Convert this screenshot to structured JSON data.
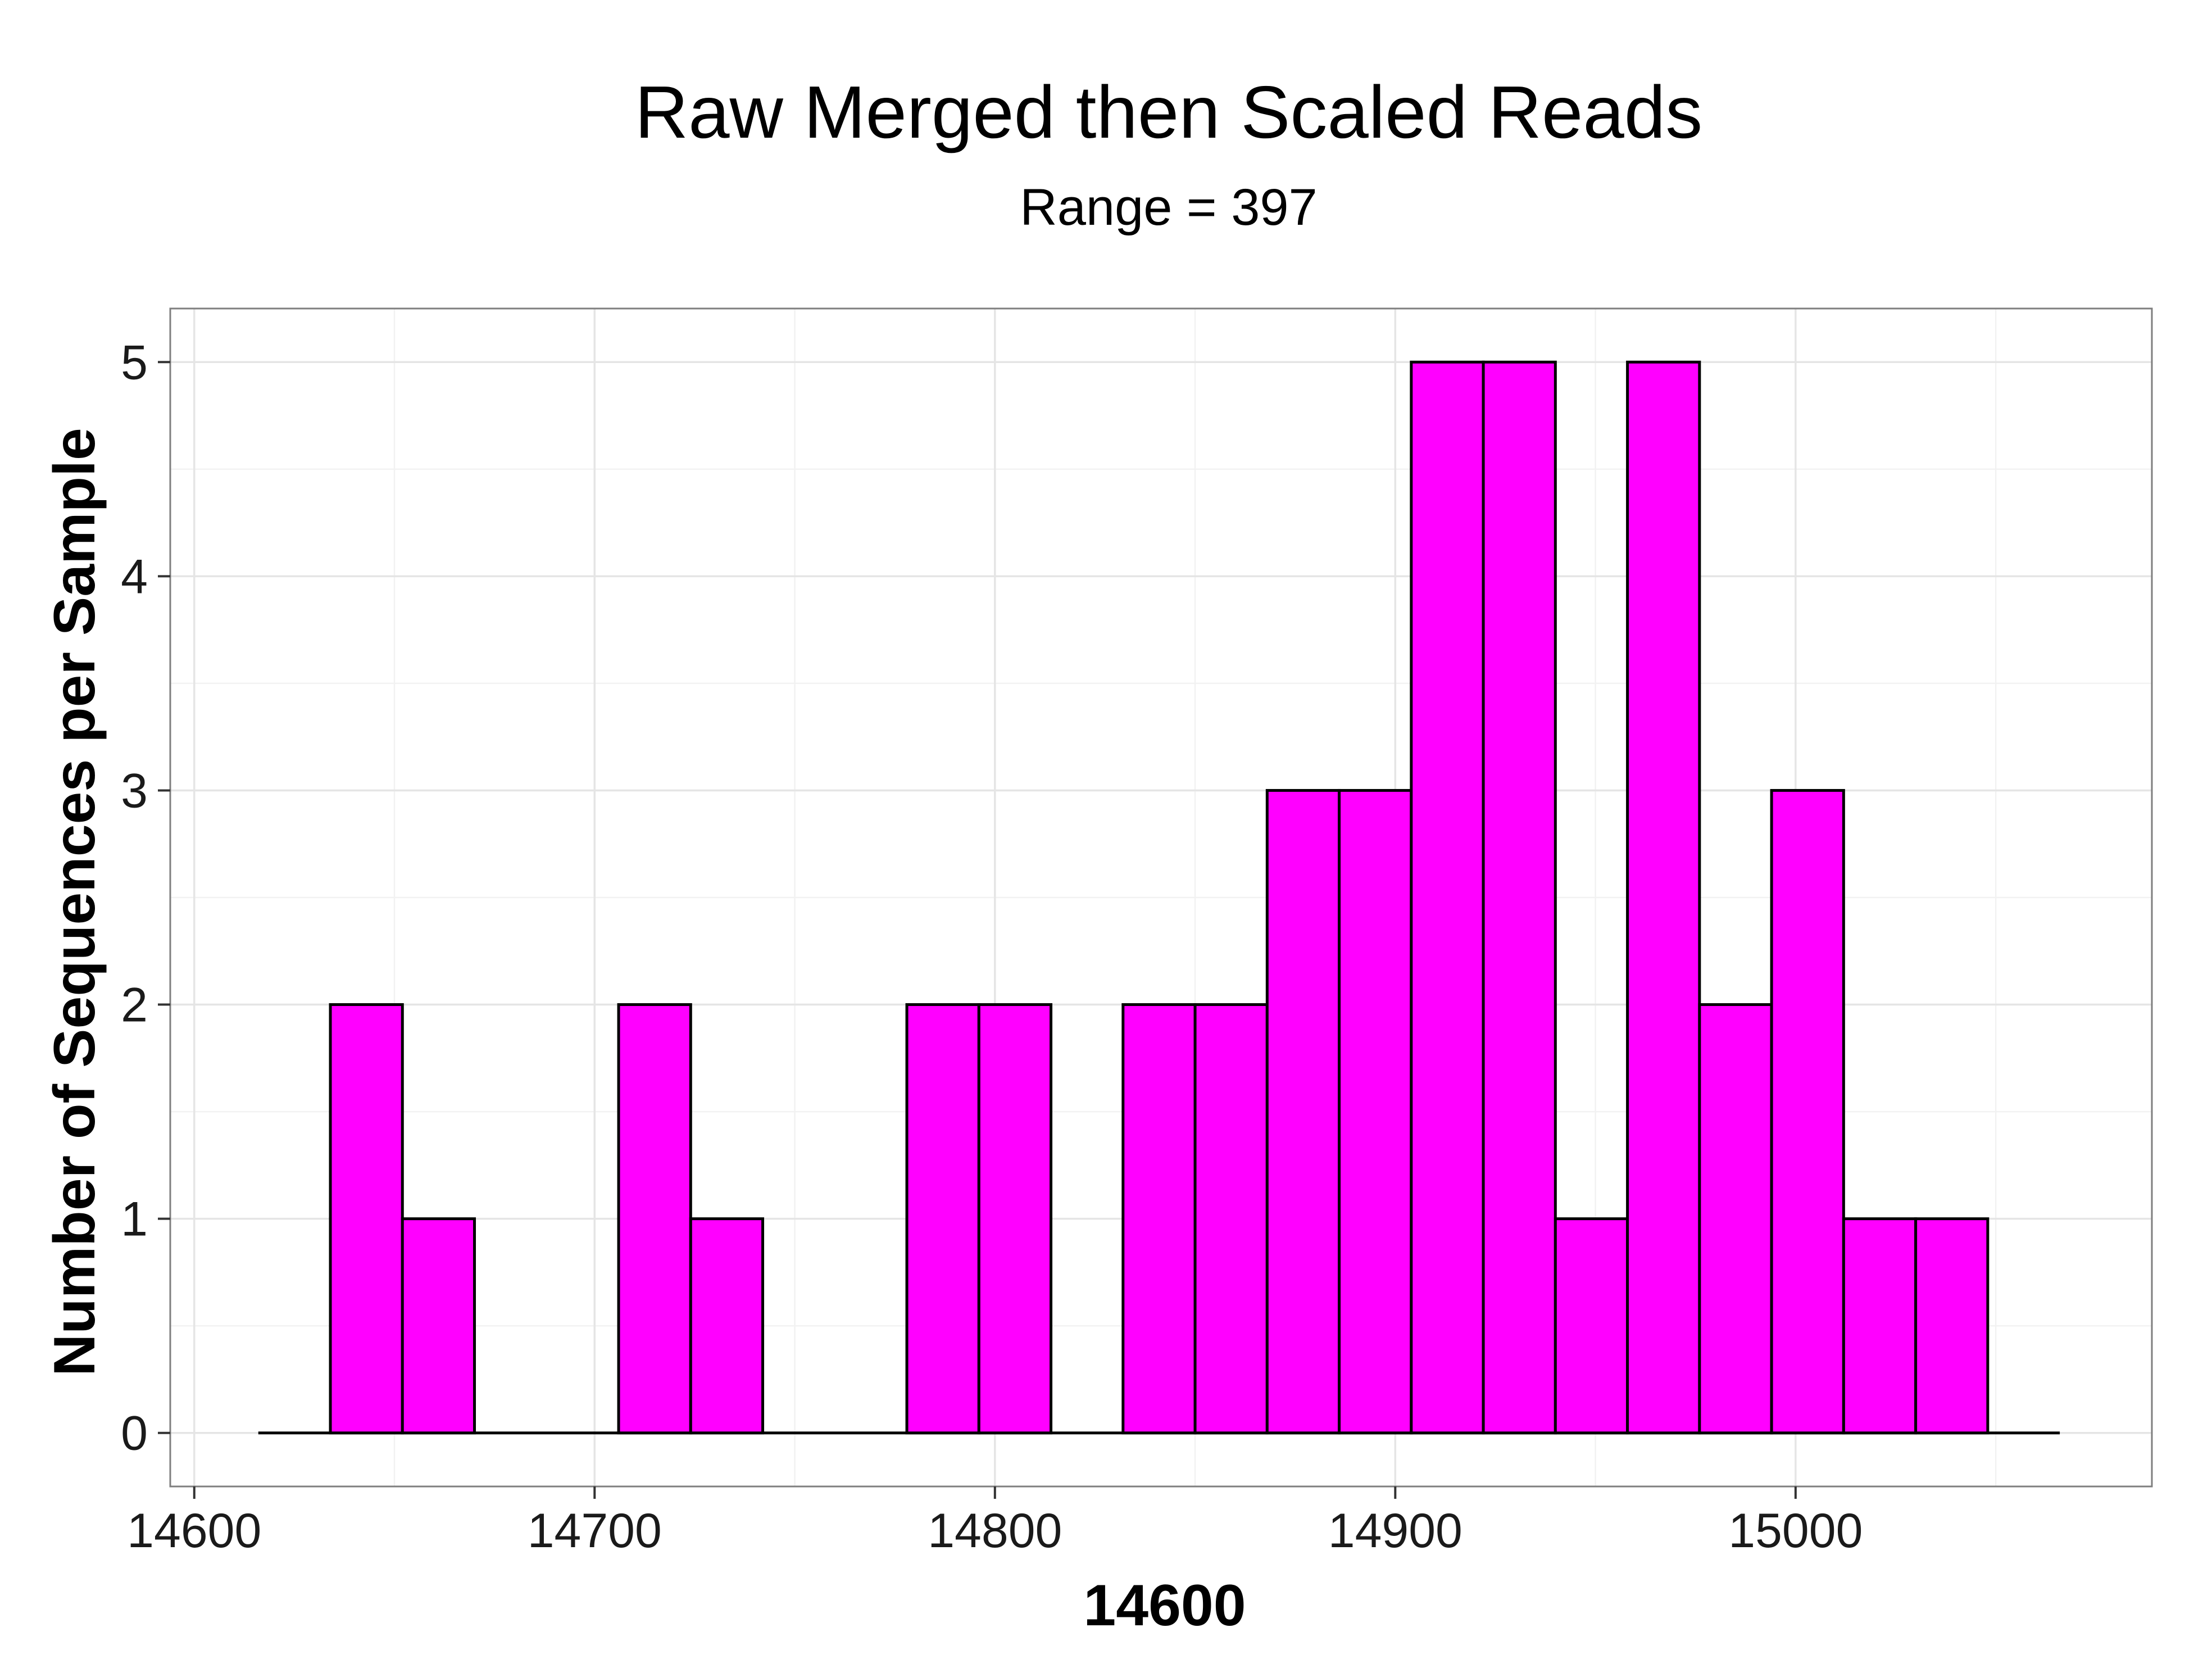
{
  "colors": {
    "bar_fill": "#ff00ff",
    "bar_stroke": "#000000",
    "panel_border": "#7f7f7f",
    "grid_major": "#e5e5e5",
    "grid_minor": "#f2f2f2",
    "baseline": "#000000"
  },
  "chart_data": {
    "type": "bar",
    "title": "Raw Merged then Scaled Reads",
    "subtitle": "Range = 397",
    "xlabel": "14600",
    "ylabel": "Number of Sequences per Sample",
    "xlim": [
      14594,
      15089
    ],
    "ylim": [
      -0.25,
      5.25
    ],
    "x_ticks": [
      14600,
      14700,
      14800,
      14900,
      15000
    ],
    "y_ticks": [
      0,
      1,
      2,
      3,
      4,
      5
    ],
    "grid": true,
    "bin_width": 18,
    "baseline_range": [
      14616,
      15066
    ],
    "bins": [
      {
        "start": 14634,
        "end": 14652,
        "count": 2
      },
      {
        "start": 14652,
        "end": 14670,
        "count": 1
      },
      {
        "start": 14706,
        "end": 14724,
        "count": 2
      },
      {
        "start": 14724,
        "end": 14742,
        "count": 1
      },
      {
        "start": 14778,
        "end": 14796,
        "count": 2
      },
      {
        "start": 14796,
        "end": 14814,
        "count": 2
      },
      {
        "start": 14832,
        "end": 14850,
        "count": 2
      },
      {
        "start": 14850,
        "end": 14868,
        "count": 2
      },
      {
        "start": 14868,
        "end": 14886,
        "count": 3
      },
      {
        "start": 14886,
        "end": 14904,
        "count": 3
      },
      {
        "start": 14904,
        "end": 14922,
        "count": 5
      },
      {
        "start": 14922,
        "end": 14940,
        "count": 5
      },
      {
        "start": 14940,
        "end": 14958,
        "count": 1
      },
      {
        "start": 14958,
        "end": 14976,
        "count": 5
      },
      {
        "start": 14976,
        "end": 14994,
        "count": 2
      },
      {
        "start": 14994,
        "end": 15012,
        "count": 3
      },
      {
        "start": 15012,
        "end": 15030,
        "count": 1
      },
      {
        "start": 15030,
        "end": 15048,
        "count": 1
      }
    ]
  }
}
